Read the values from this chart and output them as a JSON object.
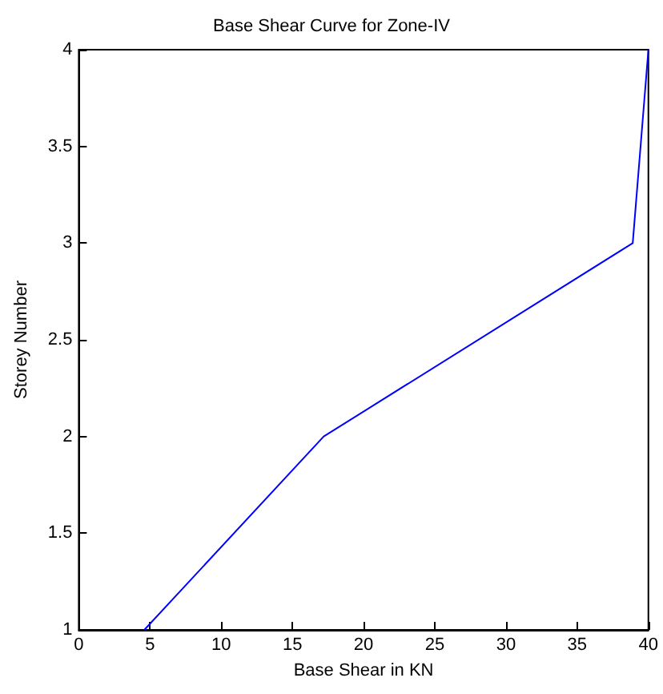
{
  "chart_data": {
    "type": "line",
    "title": "Base Shear Curve for Zone-IV",
    "xlabel": "Base Shear in KN",
    "ylabel": "Storey Number",
    "x": [
      4.6,
      17.2,
      38.9,
      40
    ],
    "series": [
      {
        "color": "#0000ff",
        "values": [
          1,
          2,
          3,
          4
        ]
      }
    ],
    "xlim": [
      0,
      40
    ],
    "xticks": [
      0,
      5,
      10,
      15,
      20,
      25,
      30,
      35,
      40
    ],
    "ylim": [
      1,
      4
    ],
    "yticks": [
      1,
      1.5,
      2,
      2.5,
      3,
      3.5,
      4
    ],
    "marker": "none",
    "line_style": "solid"
  }
}
